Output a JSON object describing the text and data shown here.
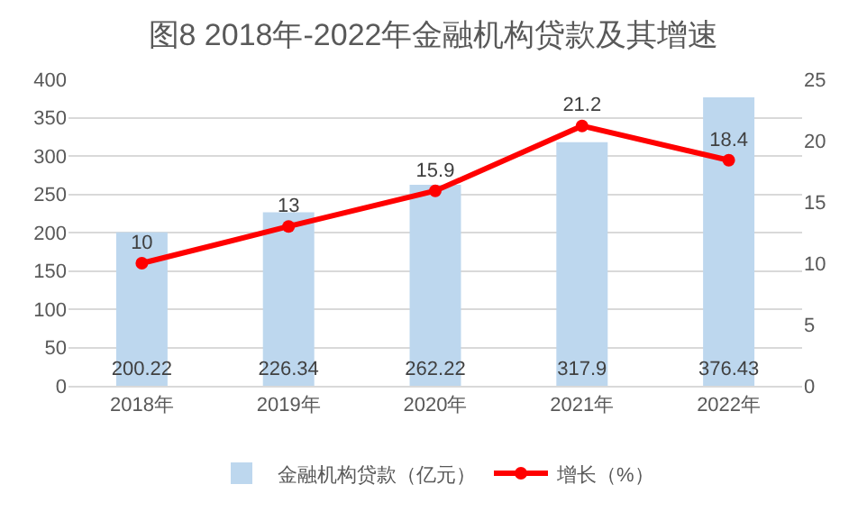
{
  "chart_data": {
    "type": "bar",
    "title": "图8 2018年-2022年金融机构贷款及其增速",
    "categories": [
      "2018年",
      "2019年",
      "2020年",
      "2021年",
      "2022年"
    ],
    "series": [
      {
        "name": "金融机构贷款（亿元）",
        "color": "#bdd7ee",
        "values": [
          200.22,
          226.34,
          262.22,
          317.9,
          376.43
        ]
      },
      {
        "name": "增长（%）",
        "type": "line",
        "axis": "y2",
        "color": "#ff0000",
        "values": [
          10,
          13,
          15.9,
          21.2,
          18.4
        ]
      }
    ],
    "ylim": [
      0,
      400
    ],
    "yticks": [
      0,
      50,
      100,
      150,
      200,
      250,
      300,
      350,
      400
    ],
    "y2lim": [
      0,
      25
    ],
    "y2ticks": [
      0,
      5,
      10,
      15,
      20,
      25
    ],
    "grid": "y",
    "legend": "bottom",
    "marker": "circle",
    "line_style": "solid",
    "data_labels": true
  }
}
